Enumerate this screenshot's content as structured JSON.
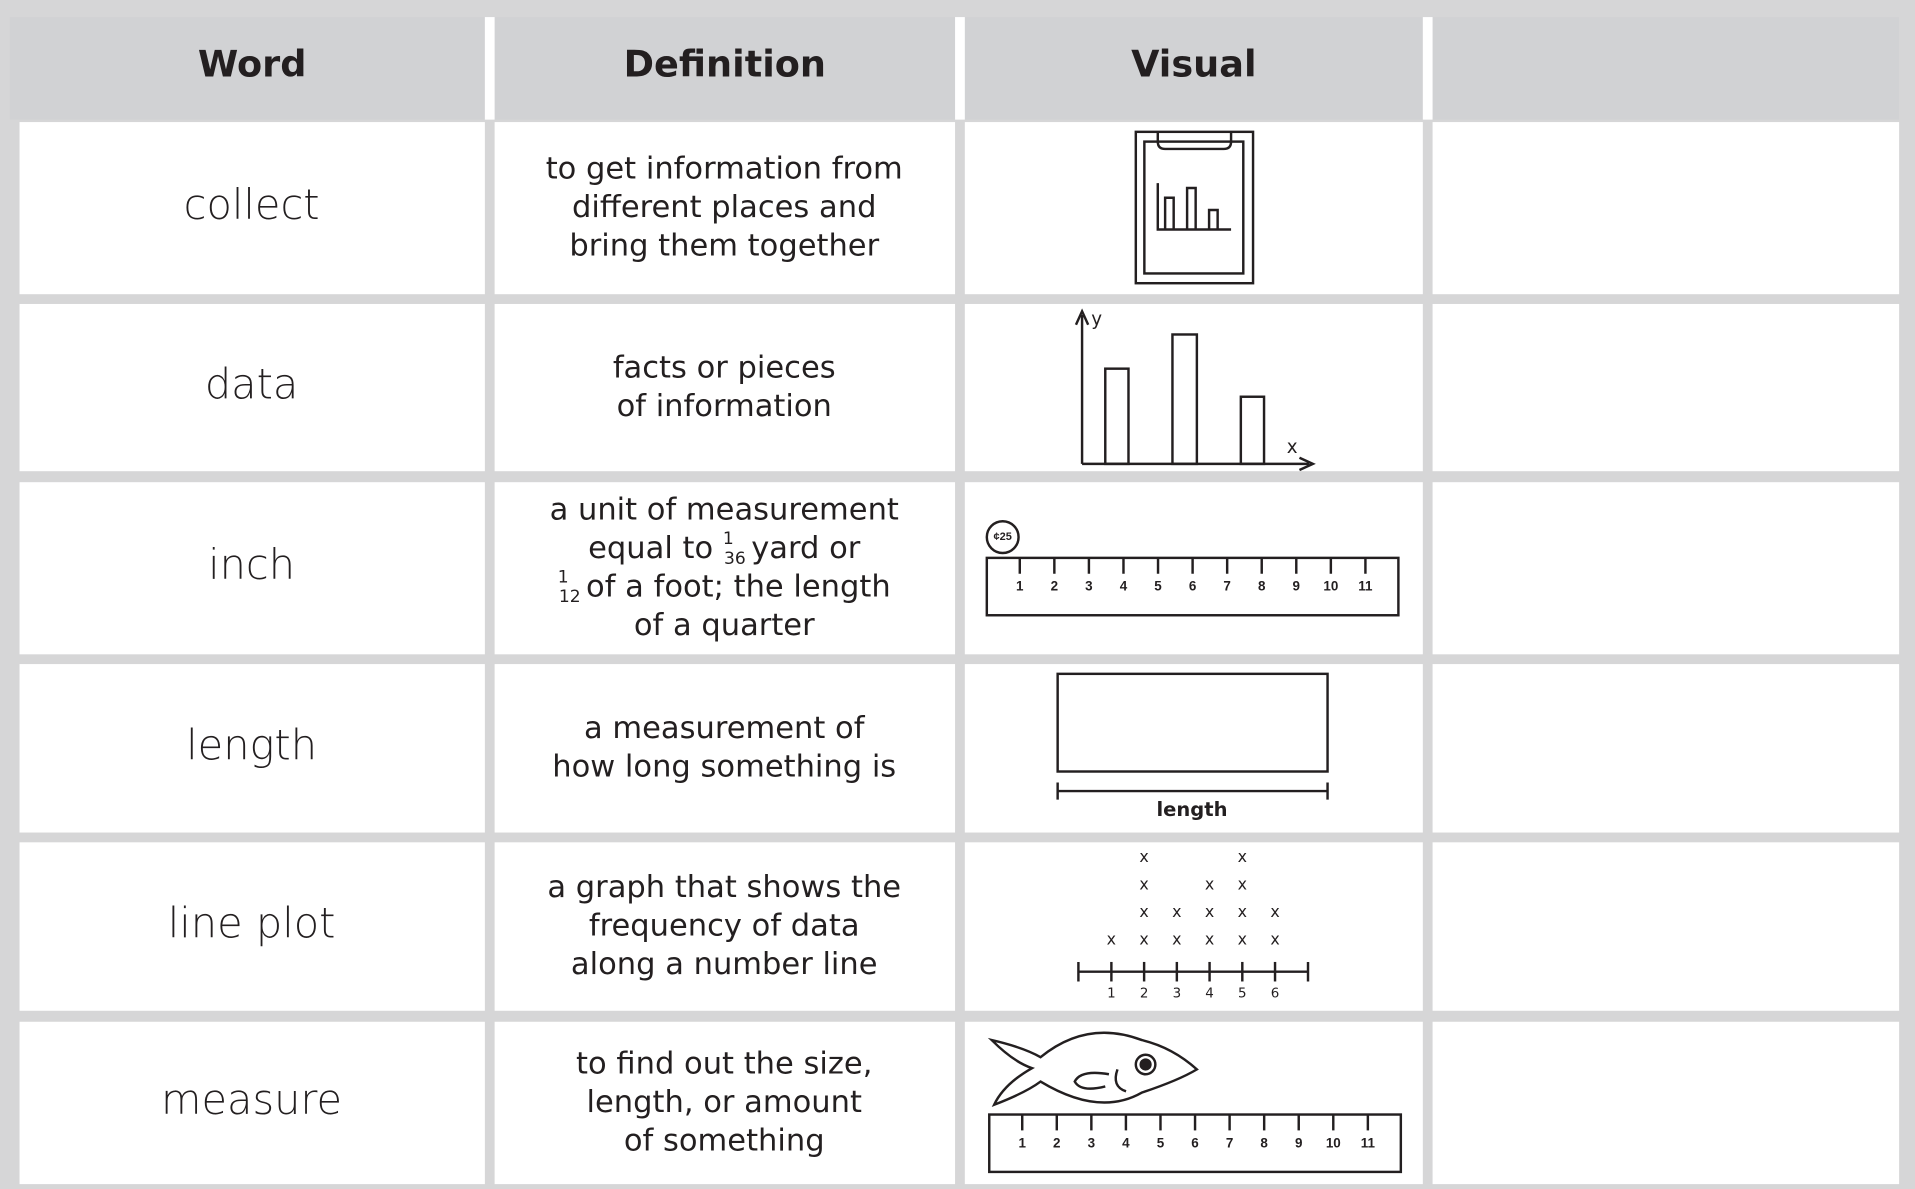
{
  "table": {
    "headers": [
      "Word",
      "Definition",
      "Visual"
    ],
    "rows": [
      {
        "word": "collect",
        "definition": [
          [
            "to get information from"
          ],
          [
            "different places and"
          ],
          [
            "bring them together"
          ]
        ]
      },
      {
        "word": "data",
        "definition": [
          [
            "facts or pieces"
          ],
          [
            "of information"
          ]
        ],
        "visual": {
          "y_label": "y",
          "x_label": "x"
        }
      },
      {
        "word": "inch",
        "definition": [
          [
            "a unit of measurement"
          ],
          [
            "equal to",
            {
              "num": "1",
              "den": "36"
            },
            "yard or"
          ],
          [
            {
              "num": "1",
              "den": "12"
            },
            "of a foot; the length"
          ],
          [
            "of a quarter"
          ]
        ],
        "visual": {
          "coin": "¢25",
          "ruler": [
            1,
            2,
            3,
            4,
            5,
            6,
            7,
            8,
            9,
            10,
            11
          ]
        }
      },
      {
        "word": "length",
        "definition": [
          [
            "a measurement of"
          ],
          [
            "how long something is"
          ]
        ],
        "visual": {
          "label": "length"
        }
      },
      {
        "word": "line plot",
        "definition": [
          [
            "a graph that shows the"
          ],
          [
            "frequency of data"
          ],
          [
            "along a number line"
          ]
        ],
        "visual": {
          "mark": "x",
          "ticks": [
            1,
            2,
            3,
            4,
            5,
            6
          ],
          "counts": [
            1,
            4,
            2,
            3,
            4,
            2
          ]
        }
      },
      {
        "word": "measure",
        "definition": [
          [
            "to find out the size,"
          ],
          [
            "length, or amount"
          ],
          [
            "of something"
          ]
        ],
        "visual": {
          "ruler": [
            1,
            2,
            3,
            4,
            5,
            6,
            7,
            8,
            9,
            10,
            11
          ]
        }
      }
    ]
  }
}
